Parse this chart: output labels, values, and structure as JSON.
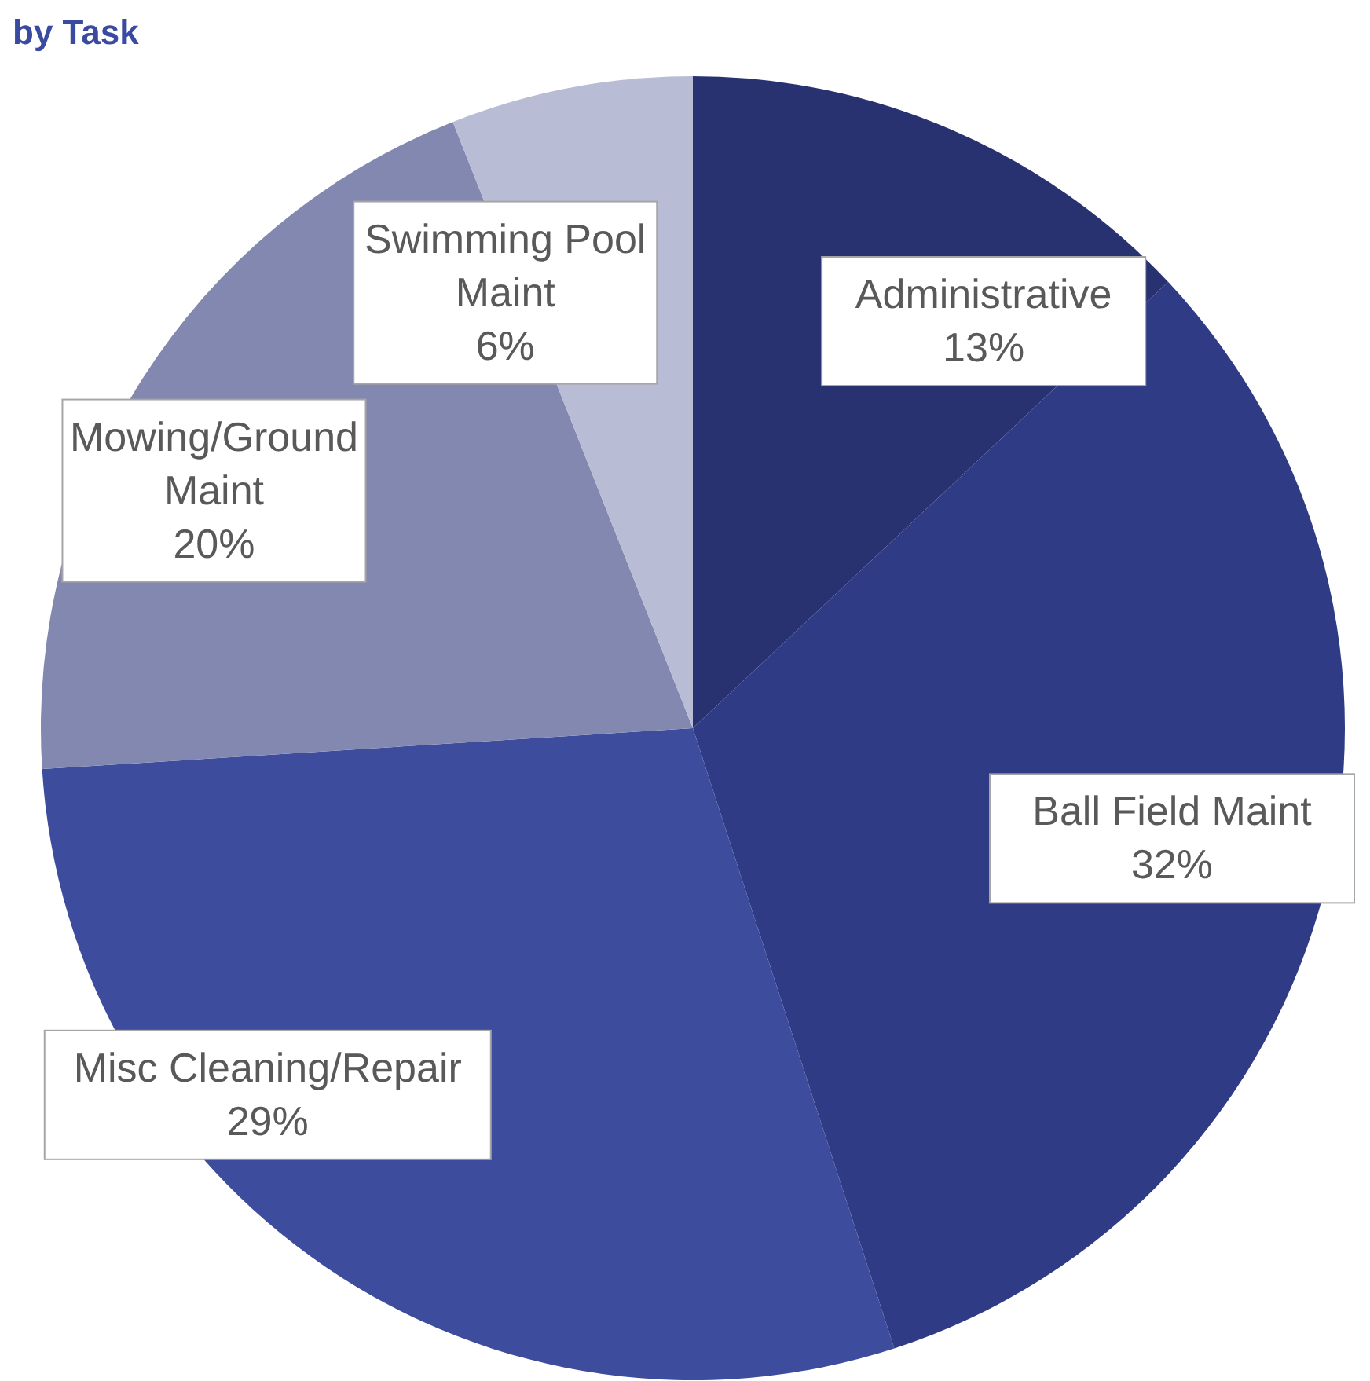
{
  "chart_data": {
    "type": "pie",
    "title": "by Task",
    "categories": [
      "Administrative",
      "Ball Field Maint",
      "Misc Cleaning/Repair",
      "Mowing/Ground\nMaint",
      "Swimming Pool\nMaint"
    ],
    "values": [
      13,
      32,
      29,
      20,
      6
    ],
    "value_labels": [
      "13%",
      "32%",
      "29%",
      "20%",
      "6%"
    ],
    "colors": [
      "#283271",
      "#2f3c85",
      "#3d4c9c",
      "#8388b0",
      "#b9bcd5"
    ]
  }
}
